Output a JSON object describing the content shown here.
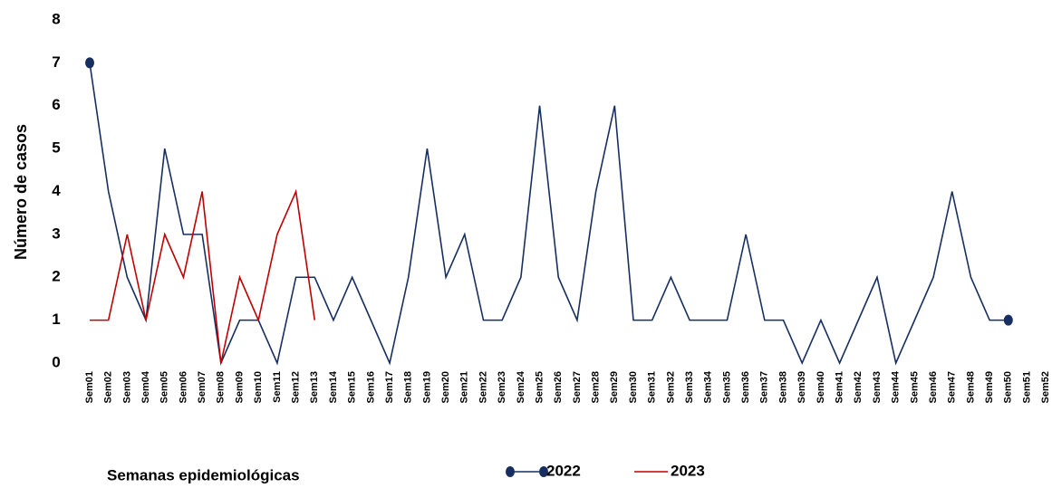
{
  "chart_data": {
    "type": "line",
    "y_label": "Número de casos",
    "x_label": "Semanas epidemiológicas",
    "categories": [
      "Sem01",
      "Sem02",
      "Sem03",
      "Sem04",
      "Sem05",
      "Sem06",
      "Sem07",
      "Sem08",
      "Sem09",
      "Sem10",
      "Sem11",
      "Sem12",
      "Sem13",
      "Sem14",
      "Sem15",
      "Sem16",
      "Sem17",
      "Sem18",
      "Sem19",
      "Sem20",
      "Sem21",
      "Sem22",
      "Sem23",
      "Sem24",
      "Sem25",
      "Sem26",
      "Sem27",
      "Sem28",
      "Sem29",
      "Sem30",
      "Sem31",
      "Sem32",
      "Sem33",
      "Sem34",
      "Sem35",
      "Sem36",
      "Sem37",
      "Sem38",
      "Sem39",
      "Sem40",
      "Sem41",
      "Sem42",
      "Sem43",
      "Sem44",
      "Sem45",
      "Sem46",
      "Sem47",
      "Sem48",
      "Sem49",
      "Sem50",
      "Sem51",
      "Sem52"
    ],
    "series": [
      {
        "name": "2022",
        "color": "#172f60",
        "values": [
          7,
          4,
          2,
          1,
          5,
          3,
          3,
          0,
          1,
          1,
          0,
          2,
          2,
          1,
          2,
          1,
          0,
          2,
          5,
          2,
          3,
          1,
          1,
          2,
          6,
          2,
          1,
          4,
          6,
          1,
          1,
          2,
          1,
          1,
          1,
          3,
          1,
          1,
          0,
          1,
          0,
          1,
          2,
          0,
          1,
          2,
          4,
          2,
          1,
          1,
          null,
          null
        ]
      },
      {
        "name": "2023",
        "color": "#c00000",
        "values": [
          1,
          1,
          3,
          1,
          3,
          2,
          4,
          0,
          2,
          1,
          3,
          4,
          1,
          null,
          null,
          null,
          null,
          null,
          null,
          null,
          null,
          null,
          null,
          null,
          null,
          null,
          null,
          null,
          null,
          null,
          null,
          null,
          null,
          null,
          null,
          null,
          null,
          null,
          null,
          null,
          null,
          null,
          null,
          null,
          null,
          null,
          null,
          null,
          null,
          null,
          null,
          null
        ]
      }
    ],
    "ylim": [
      0,
      8
    ],
    "yticks": [
      0,
      1,
      2,
      3,
      4,
      5,
      6,
      7,
      8
    ],
    "grid": false
  }
}
